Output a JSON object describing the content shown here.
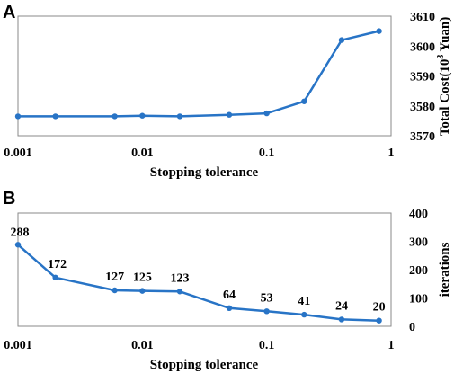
{
  "chart_data": [
    {
      "panel": "A",
      "type": "line",
      "x_scale": "log",
      "xlabel": "Stopping tolerance",
      "ylabel": "Total Cost(10",
      "ylabel_sup": "3",
      "ylabel_tail": " Yuan)",
      "xlim": [
        0.001,
        1
      ],
      "ylim": [
        3570,
        3610
      ],
      "x_ticks": [
        0.001,
        0.01,
        0.1,
        1
      ],
      "x_tick_labels": [
        "0.001",
        "0.01",
        "0.1",
        "1"
      ],
      "y_ticks": [
        3570,
        3580,
        3590,
        3600,
        3610
      ],
      "y_tick_labels": [
        "3570",
        "3580",
        "3590",
        "3600",
        "3610"
      ],
      "x": [
        0.001,
        0.002,
        0.006,
        0.01,
        0.02,
        0.05,
        0.1,
        0.2,
        0.4,
        0.8
      ],
      "series": [
        {
          "values": [
            3576.5,
            3576.5,
            3576.5,
            3576.7,
            3576.5,
            3577.0,
            3577.5,
            3581.5,
            3602.0,
            3605.0
          ]
        }
      ],
      "color": "#2874c6"
    },
    {
      "panel": "B",
      "type": "line",
      "x_scale": "log",
      "xlabel": "Stopping tolerance",
      "ylabel": "iterations",
      "xlim": [
        0.001,
        1
      ],
      "ylim": [
        0,
        400
      ],
      "x_ticks": [
        0.001,
        0.01,
        0.1,
        1
      ],
      "x_tick_labels": [
        "0.001",
        "0.01",
        "0.1",
        "1"
      ],
      "y_ticks": [
        0,
        100,
        200,
        300,
        400
      ],
      "y_tick_labels": [
        "0",
        "100",
        "200",
        "300",
        "400"
      ],
      "x": [
        0.001,
        0.002,
        0.006,
        0.01,
        0.02,
        0.05,
        0.1,
        0.2,
        0.4,
        0.8
      ],
      "series": [
        {
          "values": [
            288,
            172,
            127,
            125,
            123,
            64,
            53,
            41,
            24,
            20
          ]
        }
      ],
      "data_labels": [
        "288",
        "172",
        "127",
        "125",
        "123",
        "64",
        "53",
        "41",
        "24",
        "20"
      ],
      "color": "#2874c6"
    }
  ]
}
